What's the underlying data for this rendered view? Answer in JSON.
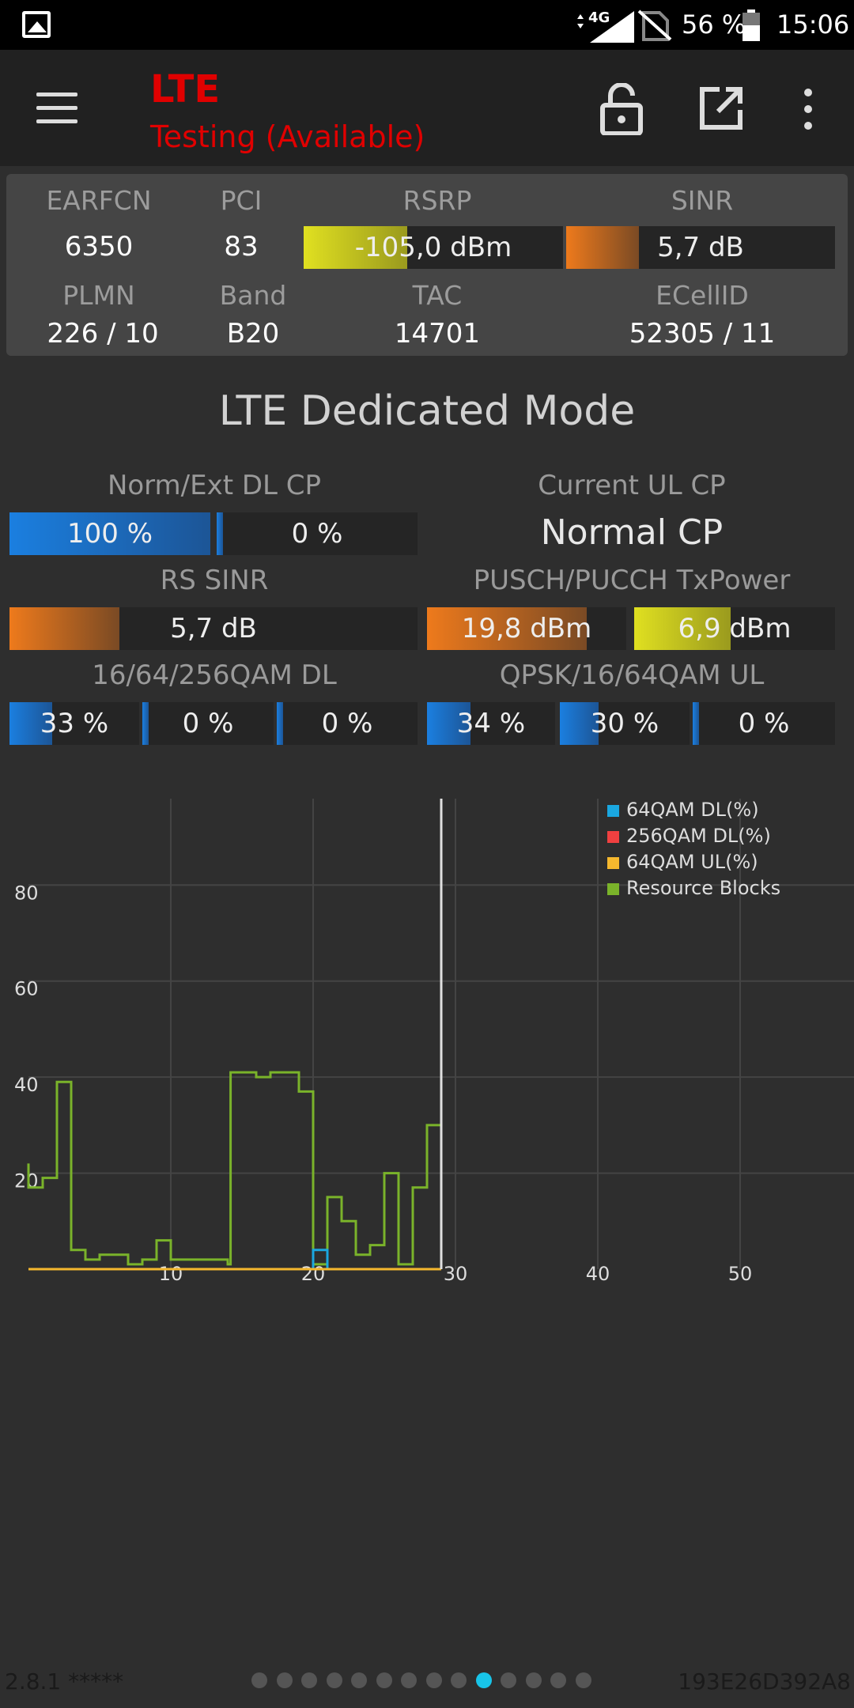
{
  "status_bar": {
    "network_type": "4G",
    "battery_percent": "56 %",
    "time": "15:06"
  },
  "app_bar": {
    "title": "LTE",
    "subtitle": "Testing (Available)",
    "icons": [
      "menu-icon",
      "lock-open-icon",
      "open-in-new-icon",
      "more-vert-icon"
    ]
  },
  "cell_info": {
    "earfcn_label": "EARFCN",
    "earfcn": "6350",
    "pci_label": "PCI",
    "pci": "83",
    "rsrp_label": "RSRP",
    "rsrp": "-105,0 dBm",
    "rsrp_level": 0.4,
    "sinr_label": "SINR",
    "sinr": "5,7 dB",
    "sinr_level": 0.27,
    "plmn_label": "PLMN",
    "plmn": "226 / 10",
    "band_label": "Band",
    "band": "B20",
    "tac_label": "TAC",
    "tac": "14701",
    "ecellid_label": "ECellID",
    "ecellid": "52305 / 11"
  },
  "dedicated": {
    "title": "LTE Dedicated Mode",
    "norm_ext_label": "Norm/Ext DL CP",
    "norm_dl": "100 %",
    "norm_dl_level": 1.0,
    "ext_dl": "0 %",
    "ext_dl_level": 0.0,
    "ul_cp_label": "Current UL CP",
    "ul_cp": "Normal CP",
    "rs_sinr_label": "RS SINR",
    "rs_sinr": "5,7 dB",
    "rs_sinr_level": 0.27,
    "txpower_label": "PUSCH/PUCCH TxPower",
    "pusch": "19,8 dBm",
    "pusch_level": 0.8,
    "pucch": "6,9 dBm",
    "pucch_level": 0.48,
    "qam_dl_label": "16/64/256QAM DL",
    "qam16_dl": "33 %",
    "qam16_dl_level": 0.33,
    "qam64_dl": "0 %",
    "qam64_dl_level": 0.0,
    "qam256_dl": "0 %",
    "qam256_dl_level": 0.0,
    "qam_ul_label": "QPSK/16/64QAM UL",
    "qpsk_ul": "34 %",
    "qpsk_ul_level": 0.34,
    "qam16_ul": "30 %",
    "qam16_ul_level": 0.3,
    "qam64_ul": "0 %",
    "qam64_ul_level": 0.0
  },
  "chart_data": {
    "type": "line",
    "xlim": [
      0,
      58
    ],
    "ylim": [
      0,
      98
    ],
    "x_ticks": [
      10,
      20,
      30,
      40,
      50
    ],
    "y_ticks": [
      20,
      40,
      60,
      80
    ],
    "cursor_x": 29,
    "grid": true,
    "legend_position": "top-right",
    "series": [
      {
        "name": "64QAM DL(%)",
        "color": "#1aa7e0",
        "points": [
          [
            0,
            0
          ],
          [
            20,
            0
          ],
          [
            20,
            4
          ],
          [
            21,
            4
          ],
          [
            21,
            0
          ],
          [
            29,
            0
          ]
        ]
      },
      {
        "name": "256QAM DL(%)",
        "color": "#f04040",
        "points": [
          [
            0,
            0
          ],
          [
            29,
            0
          ]
        ]
      },
      {
        "name": "64QAM UL(%)",
        "color": "#f5b82e",
        "points": [
          [
            0,
            0
          ],
          [
            29,
            0
          ]
        ]
      },
      {
        "name": "Resource Blocks",
        "color": "#7ab32a",
        "points": [
          [
            0,
            22
          ],
          [
            0,
            17
          ],
          [
            1,
            17
          ],
          [
            1,
            19
          ],
          [
            2,
            19
          ],
          [
            2,
            39
          ],
          [
            3,
            39
          ],
          [
            3,
            4
          ],
          [
            4,
            4
          ],
          [
            4,
            2
          ],
          [
            5,
            2
          ],
          [
            5,
            3
          ],
          [
            7,
            3
          ],
          [
            7,
            1
          ],
          [
            8,
            1
          ],
          [
            8,
            2
          ],
          [
            9,
            2
          ],
          [
            9,
            6
          ],
          [
            10,
            6
          ],
          [
            10,
            2
          ],
          [
            14,
            2
          ],
          [
            14,
            1
          ],
          [
            14.2,
            1
          ],
          [
            14.2,
            41
          ],
          [
            16,
            41
          ],
          [
            16,
            40
          ],
          [
            17,
            40
          ],
          [
            17,
            41
          ],
          [
            19,
            41
          ],
          [
            19,
            37
          ],
          [
            20,
            37
          ],
          [
            20,
            1
          ],
          [
            21,
            1
          ],
          [
            21,
            15
          ],
          [
            22,
            15
          ],
          [
            22,
            10
          ],
          [
            23,
            10
          ],
          [
            23,
            3
          ],
          [
            24,
            3
          ],
          [
            24,
            5
          ],
          [
            25,
            5
          ],
          [
            25,
            20
          ],
          [
            26,
            20
          ],
          [
            26,
            1
          ],
          [
            27,
            1
          ],
          [
            27,
            17
          ],
          [
            28,
            17
          ],
          [
            28,
            30
          ],
          [
            29,
            30
          ]
        ]
      }
    ]
  },
  "footer": {
    "version": "2.8.1 *****",
    "device_id": "193E26D392A8",
    "page_count": 14,
    "active_page": 9
  }
}
